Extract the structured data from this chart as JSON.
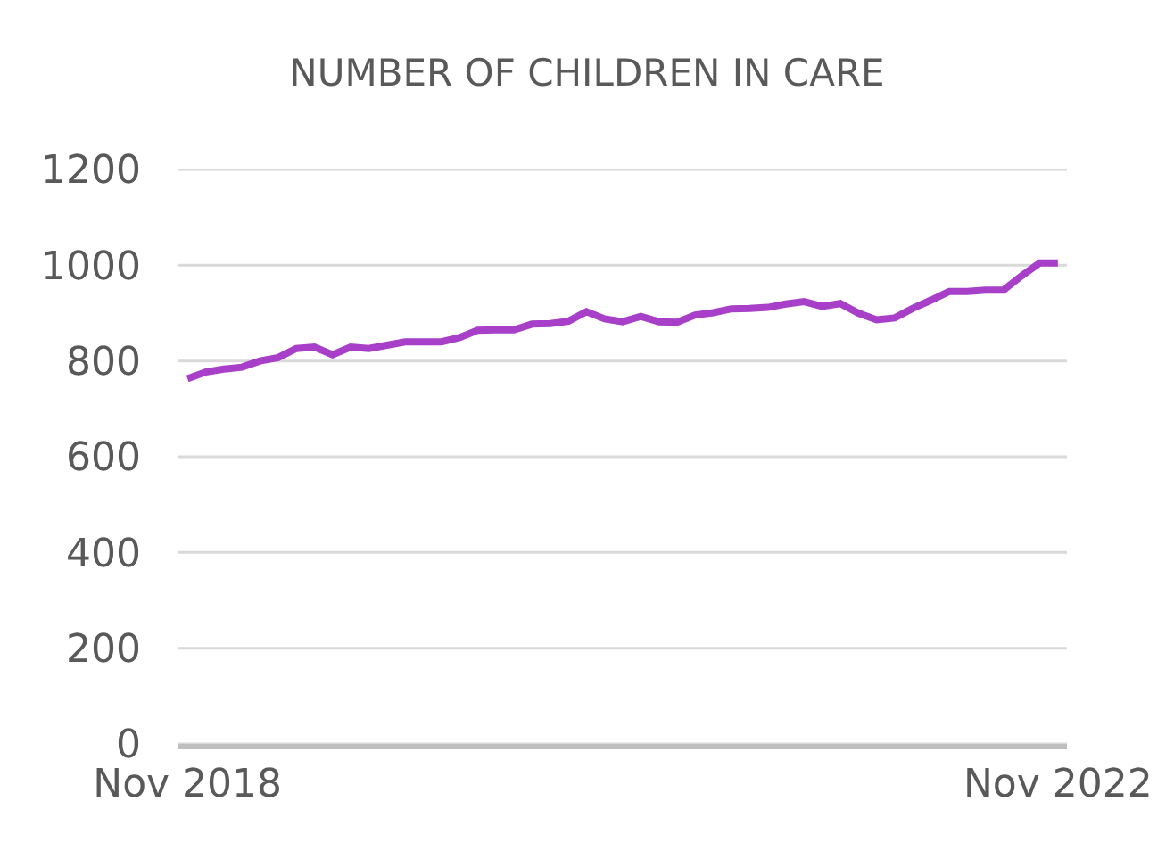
{
  "chart_data": {
    "type": "line",
    "title": "NUMBER OF CHILDREN IN CARE",
    "categories": [
      "Nov 2018",
      null,
      null,
      null,
      null,
      null,
      null,
      null,
      null,
      null,
      null,
      null,
      null,
      null,
      null,
      null,
      null,
      null,
      null,
      null,
      null,
      null,
      null,
      null,
      null,
      null,
      null,
      null,
      null,
      null,
      null,
      null,
      null,
      null,
      null,
      null,
      null,
      null,
      null,
      null,
      null,
      null,
      null,
      null,
      null,
      null,
      null,
      null,
      "Nov 2022"
    ],
    "series": [
      {
        "color": "#a83fc8",
        "values": [
          763,
          777,
          783,
          787,
          800,
          807,
          826,
          829,
          813,
          829,
          826,
          833,
          840,
          840,
          840,
          849,
          864,
          865,
          865,
          877,
          878,
          883,
          903,
          888,
          882,
          893,
          882,
          881,
          896,
          901,
          909,
          910,
          912,
          919,
          924,
          914,
          920,
          900,
          886,
          890,
          910,
          927,
          945,
          945,
          948,
          948,
          978,
          1005,
          1005
        ]
      }
    ],
    "ylim": [
      0,
      1200
    ],
    "yticks": [
      0,
      200,
      400,
      600,
      800,
      1000,
      1200
    ],
    "grid": "y",
    "marker": "none",
    "line_style": "solid"
  }
}
